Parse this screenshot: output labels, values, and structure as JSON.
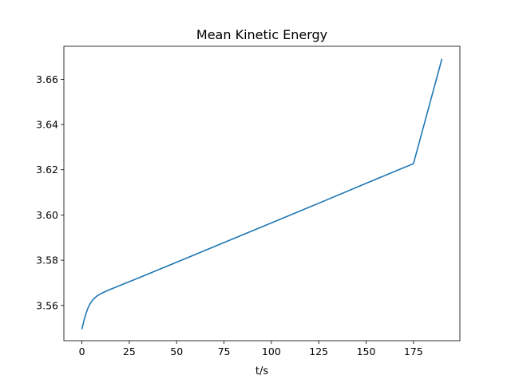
{
  "chart_data": {
    "type": "line",
    "title": "Mean Kinetic Energy",
    "xlabel": "t/s",
    "ylabel": "",
    "xlim": [
      -9.5,
      199.5
    ],
    "ylim": [
      3.5444,
      3.6746
    ],
    "xticks": [
      0,
      25,
      50,
      75,
      100,
      125,
      150,
      175
    ],
    "yticks": [
      3.56,
      3.58,
      3.6,
      3.62,
      3.64,
      3.66
    ],
    "ytick_labels": [
      "3.56",
      "3.58",
      "3.60",
      "3.62",
      "3.64",
      "3.66"
    ],
    "grid": false,
    "line_color": "#1f77b4",
    "series": [
      {
        "x": [
          0,
          1,
          2,
          3,
          4,
          5,
          6,
          8,
          10,
          12,
          15,
          20,
          30,
          50,
          75,
          100,
          125,
          150,
          175,
          190
        ],
        "y": [
          3.5495,
          3.553,
          3.556,
          3.5584,
          3.5602,
          3.5616,
          3.5627,
          3.5642,
          3.5652,
          3.566,
          3.5671,
          3.5688,
          3.5722,
          3.5791,
          3.5878,
          3.5965,
          3.6052,
          3.614,
          3.6227,
          3.669
        ]
      }
    ]
  }
}
